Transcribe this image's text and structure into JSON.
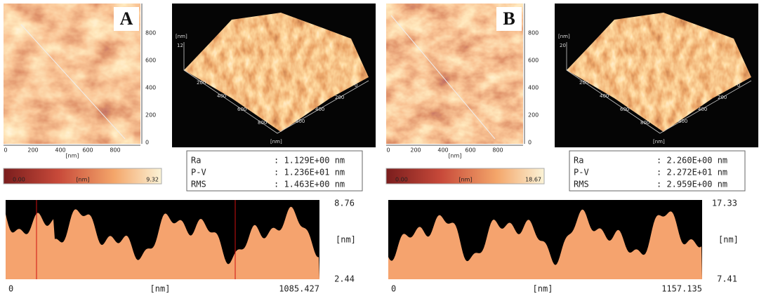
{
  "panels": [
    {
      "label": "A",
      "image_2d": {
        "y_ticks": [
          "800",
          "600",
          "400",
          "200",
          "0"
        ],
        "x_ticks": [
          "0",
          "200",
          "400",
          "600",
          "800"
        ],
        "unit": "[nm]"
      },
      "view_3d": {
        "z_unit": "[nm]",
        "z_tick": "12",
        "left_ticks": [
          "200",
          "400",
          "600",
          "800"
        ],
        "right_ticks": [
          "0",
          "200",
          "400",
          "600"
        ],
        "unit": "[nm]"
      },
      "colorbar": {
        "min": "0.00",
        "unit": "[nm]",
        "max": "9.32"
      },
      "stats": [
        {
          "name": "Ra",
          "value": ": 1.129E+00 nm"
        },
        {
          "name": "P-V",
          "value": ": 1.236E+01 nm"
        },
        {
          "name": "RMS",
          "value": ": 1.463E+00 nm"
        }
      ],
      "profile": {
        "top": "8.76",
        "bottom": "2.44",
        "unit": "[nm]",
        "x_start": "0",
        "x_unit": "[nm]",
        "x_end": "1085.427"
      }
    },
    {
      "label": "B",
      "image_2d": {
        "y_ticks": [
          "800",
          "600",
          "400",
          "200",
          "0"
        ],
        "x_ticks": [
          "0",
          "200",
          "400",
          "600",
          "800"
        ],
        "unit": "[nm]"
      },
      "view_3d": {
        "z_unit": "[nm]",
        "z_tick": "20",
        "left_ticks": [
          "200",
          "400",
          "600",
          "800"
        ],
        "right_ticks": [
          "0",
          "200",
          "400",
          "600"
        ],
        "unit": "[nm]"
      },
      "colorbar": {
        "min": "0.00",
        "unit": "[nm]",
        "max": "18.67"
      },
      "stats": [
        {
          "name": "Ra",
          "value": ": 2.260E+00 nm"
        },
        {
          "name": "P-V",
          "value": ": 2.272E+01 nm"
        },
        {
          "name": "RMS",
          "value": ": 2.959E+00 nm"
        }
      ],
      "profile": {
        "top": "17.33",
        "bottom": "7.41",
        "unit": "[nm]",
        "x_start": "0",
        "x_unit": "[nm]",
        "x_end": "1157.135"
      }
    }
  ]
}
